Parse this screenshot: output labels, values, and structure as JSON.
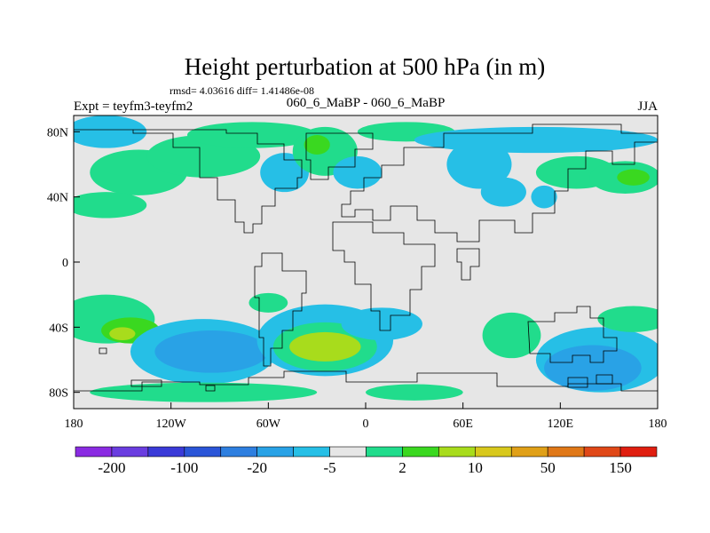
{
  "chart_data": {
    "type": "heatmap",
    "title": "Height perturbation at 500 hPa (in m)",
    "stats_line": "rmsd= 4.03616 diff= 1.41486e-08",
    "subtitle_center": "060_6_MaBP - 060_6_MaBP",
    "subtitle_left": "Expt = teyfm3-teyfm2",
    "subtitle_right": "JJA",
    "xlim": [
      -180,
      180
    ],
    "ylim": [
      -90,
      90
    ],
    "x_ticks": [
      {
        "value": -180,
        "label": "180"
      },
      {
        "value": -120,
        "label": "120W"
      },
      {
        "value": -60,
        "label": "60W"
      },
      {
        "value": 0,
        "label": "0"
      },
      {
        "value": 60,
        "label": "60E"
      },
      {
        "value": 120,
        "label": "120E"
      },
      {
        "value": 180,
        "label": "180"
      }
    ],
    "y_ticks": [
      {
        "value": 80,
        "label": "80N"
      },
      {
        "value": 40,
        "label": "40N"
      },
      {
        "value": 0,
        "label": "0"
      },
      {
        "value": -40,
        "label": "40S"
      },
      {
        "value": -80,
        "label": "80S"
      }
    ],
    "colorbar": {
      "colors": [
        "#8a2be2",
        "#6a3de0",
        "#3a3ad8",
        "#2a55d8",
        "#2e7fe0",
        "#29a2e6",
        "#26bfe6",
        "#e6e6e6",
        "#21dc8c",
        "#3ad820",
        "#a8dc1c",
        "#d8c81c",
        "#e0a018",
        "#e07818",
        "#e04818",
        "#e01e10"
      ],
      "labels": [
        {
          "boundary": 1,
          "text": "-200"
        },
        {
          "boundary": 3,
          "text": "-100"
        },
        {
          "boundary": 5,
          "text": "-20"
        },
        {
          "boundary": 7,
          "text": "-5"
        },
        {
          "boundary": 9,
          "text": "2"
        },
        {
          "boundary": 11,
          "text": "10"
        },
        {
          "boundary": 13,
          "text": "50"
        },
        {
          "boundary": 15,
          "text": "150"
        }
      ]
    },
    "anomalies": [
      {
        "lon": -160,
        "lat": 80,
        "rlon": 25,
        "rlat": 10,
        "level": 6
      },
      {
        "lon": -140,
        "lat": 55,
        "rlon": 30,
        "rlat": 14,
        "level": 8
      },
      {
        "lon": -160,
        "lat": 35,
        "rlon": 25,
        "rlat": 8,
        "level": 8
      },
      {
        "lon": -100,
        "lat": 65,
        "rlon": 35,
        "rlat": 13,
        "level": 8
      },
      {
        "lon": -70,
        "lat": 78,
        "rlon": 40,
        "rlat": 8,
        "level": 8
      },
      {
        "lon": -50,
        "lat": 55,
        "rlon": 15,
        "rlat": 12,
        "level": 6
      },
      {
        "lon": -25,
        "lat": 68,
        "rlon": 20,
        "rlat": 15,
        "level": 8
      },
      {
        "lon": -30,
        "lat": 72,
        "rlon": 8,
        "rlat": 6,
        "level": 9
      },
      {
        "lon": -5,
        "lat": 55,
        "rlon": 15,
        "rlat": 10,
        "level": 6
      },
      {
        "lon": 25,
        "lat": 80,
        "rlon": 30,
        "rlat": 6,
        "level": 8
      },
      {
        "lon": 70,
        "lat": 60,
        "rlon": 20,
        "rlat": 15,
        "level": 6
      },
      {
        "lon": 105,
        "lat": 75,
        "rlon": 75,
        "rlat": 8,
        "level": 6
      },
      {
        "lon": 130,
        "lat": 55,
        "rlon": 25,
        "rlat": 10,
        "level": 8
      },
      {
        "lon": 160,
        "lat": 52,
        "rlon": 22,
        "rlat": 10,
        "level": 8
      },
      {
        "lon": 165,
        "lat": 52,
        "rlon": 10,
        "rlat": 5,
        "level": 9
      },
      {
        "lon": 85,
        "lat": 43,
        "rlon": 14,
        "rlat": 9,
        "level": 6
      },
      {
        "lon": 110,
        "lat": 40,
        "rlon": 8,
        "rlat": 7,
        "level": 6
      },
      {
        "lon": -160,
        "lat": -35,
        "rlon": 30,
        "rlat": 15,
        "level": 8
      },
      {
        "lon": -145,
        "lat": -42,
        "rlon": 18,
        "rlat": 8,
        "level": 9
      },
      {
        "lon": -150,
        "lat": -44,
        "rlon": 8,
        "rlat": 4,
        "level": 10
      },
      {
        "lon": -100,
        "lat": -55,
        "rlon": 45,
        "rlat": 20,
        "level": 6
      },
      {
        "lon": -95,
        "lat": -55,
        "rlon": 35,
        "rlat": 13,
        "level": 5
      },
      {
        "lon": -100,
        "lat": -80,
        "rlon": 70,
        "rlat": 6,
        "level": 8
      },
      {
        "lon": -25,
        "lat": -48,
        "rlon": 42,
        "rlat": 22,
        "level": 6
      },
      {
        "lon": -25,
        "lat": -52,
        "rlon": 32,
        "rlat": 15,
        "level": 8
      },
      {
        "lon": -25,
        "lat": -52,
        "rlon": 22,
        "rlat": 9,
        "level": 10
      },
      {
        "lon": 10,
        "lat": -38,
        "rlon": 25,
        "rlat": 10,
        "level": 6
      },
      {
        "lon": 90,
        "lat": -45,
        "rlon": 18,
        "rlat": 14,
        "level": 8
      },
      {
        "lon": 145,
        "lat": -60,
        "rlon": 40,
        "rlat": 20,
        "level": 6
      },
      {
        "lon": 140,
        "lat": -65,
        "rlon": 30,
        "rlat": 14,
        "level": 5
      },
      {
        "lon": 165,
        "lat": -35,
        "rlon": 22,
        "rlat": 8,
        "level": 8
      },
      {
        "lon": 30,
        "lat": -80,
        "rlon": 30,
        "rlat": 5,
        "level": 8
      },
      {
        "lon": -60,
        "lat": -25,
        "rlon": 12,
        "rlat": 6,
        "level": 8
      }
    ]
  }
}
